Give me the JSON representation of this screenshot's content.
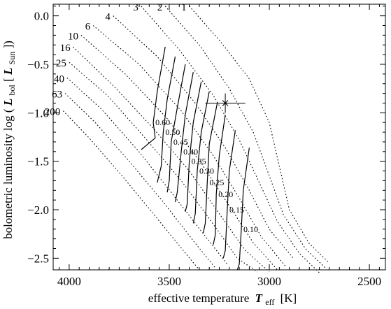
{
  "chart_data": {
    "type": "line",
    "xlabel": {
      "main": "effective temperature",
      "sym": "T",
      "sub": "eff",
      "unit": "[K]"
    },
    "ylabel": {
      "main": "bolometric luminosity log",
      "sym": "L",
      "sub1": "bol",
      "bracket_sym": "L",
      "sub2": "Sun"
    },
    "xlim": [
      4080,
      2420
    ],
    "ylim": [
      -2.62,
      0.12
    ],
    "x_ticks": [
      4000,
      3500,
      3000,
      2500
    ],
    "x_tick_labels": [
      "4000",
      "3500",
      "3000",
      "2500"
    ],
    "y_ticks": [
      0.0,
      -0.5,
      -1.0,
      -1.5,
      -2.0,
      -2.5
    ],
    "y_tick_labels": [
      "0.0",
      "−0.5",
      "−1.0",
      "−1.5",
      "−2.0",
      "−2.5"
    ],
    "isochrones": [
      {
        "age": "1",
        "points": [
          [
            3400,
            0.1
          ],
          [
            3250,
            -0.25
          ],
          [
            3100,
            -0.65
          ],
          [
            3000,
            -1.1
          ],
          [
            2950,
            -1.55
          ],
          [
            2900,
            -2.0
          ],
          [
            2800,
            -2.35
          ],
          [
            2700,
            -2.55
          ]
        ]
      },
      {
        "age": "2",
        "points": [
          [
            3520,
            0.1
          ],
          [
            3350,
            -0.3
          ],
          [
            3200,
            -0.75
          ],
          [
            3080,
            -1.2
          ],
          [
            3000,
            -1.65
          ],
          [
            2930,
            -2.05
          ],
          [
            2820,
            -2.4
          ],
          [
            2720,
            -2.6
          ]
        ]
      },
      {
        "age": "3",
        "points": [
          [
            3640,
            0.1
          ],
          [
            3450,
            -0.35
          ],
          [
            3280,
            -0.82
          ],
          [
            3150,
            -1.28
          ],
          [
            3050,
            -1.72
          ],
          [
            2960,
            -2.12
          ],
          [
            2850,
            -2.45
          ],
          [
            2750,
            -2.65
          ]
        ]
      },
      {
        "age": "4",
        "points": [
          [
            3780,
            0.0
          ],
          [
            3560,
            -0.42
          ],
          [
            3370,
            -0.9
          ],
          [
            3220,
            -1.36
          ],
          [
            3100,
            -1.8
          ],
          [
            3000,
            -2.2
          ],
          [
            2880,
            -2.5
          ]
        ]
      },
      {
        "age": "6",
        "points": [
          [
            3880,
            -0.1
          ],
          [
            3650,
            -0.5
          ],
          [
            3440,
            -0.98
          ],
          [
            3280,
            -1.44
          ],
          [
            3150,
            -1.88
          ],
          [
            3040,
            -2.28
          ],
          [
            2920,
            -2.58
          ]
        ]
      },
      {
        "age": "10",
        "points": [
          [
            3940,
            -0.2
          ],
          [
            3720,
            -0.6
          ],
          [
            3510,
            -1.06
          ],
          [
            3340,
            -1.52
          ],
          [
            3200,
            -1.96
          ],
          [
            3080,
            -2.34
          ],
          [
            2960,
            -2.62
          ]
        ]
      },
      {
        "age": "16",
        "points": [
          [
            3980,
            -0.32
          ],
          [
            3780,
            -0.72
          ],
          [
            3580,
            -1.16
          ],
          [
            3400,
            -1.6
          ],
          [
            3250,
            -2.04
          ],
          [
            3120,
            -2.42
          ],
          [
            3000,
            -2.64
          ]
        ]
      },
      {
        "age": "25",
        "points": [
          [
            4000,
            -0.48
          ],
          [
            3810,
            -0.82
          ],
          [
            3620,
            -1.26
          ],
          [
            3440,
            -1.7
          ],
          [
            3290,
            -2.12
          ],
          [
            3160,
            -2.5
          ],
          [
            3060,
            -2.64
          ]
        ]
      },
      {
        "age": "40",
        "points": [
          [
            4010,
            -0.64
          ],
          [
            3840,
            -0.96
          ],
          [
            3660,
            -1.38
          ],
          [
            3490,
            -1.82
          ],
          [
            3340,
            -2.22
          ],
          [
            3210,
            -2.56
          ]
        ]
      },
      {
        "age": "63",
        "points": [
          [
            4020,
            -0.8
          ],
          [
            3870,
            -1.1
          ],
          [
            3700,
            -1.5
          ],
          [
            3530,
            -1.92
          ],
          [
            3380,
            -2.32
          ],
          [
            3270,
            -2.6
          ]
        ]
      },
      {
        "age": "200",
        "points": [
          [
            4030,
            -0.98
          ],
          [
            3900,
            -1.26
          ],
          [
            3740,
            -1.64
          ],
          [
            3580,
            -2.04
          ],
          [
            3430,
            -2.42
          ],
          [
            3350,
            -2.62
          ]
        ]
      }
    ],
    "mass_tracks": [
      {
        "mass": "0.60",
        "points": [
          [
            3520,
            -0.32
          ],
          [
            3560,
            -0.78
          ],
          [
            3580,
            -1.1
          ],
          [
            3570,
            -1.26
          ],
          [
            3640,
            -1.38
          ]
        ]
      },
      {
        "mass": "0.50",
        "points": [
          [
            3470,
            -0.42
          ],
          [
            3510,
            -0.86
          ],
          [
            3530,
            -1.2
          ],
          [
            3540,
            -1.55
          ],
          [
            3560,
            -1.72
          ]
        ]
      },
      {
        "mass": "0.45",
        "points": [
          [
            3420,
            -0.5
          ],
          [
            3460,
            -0.95
          ],
          [
            3490,
            -1.3
          ],
          [
            3500,
            -1.7
          ],
          [
            3510,
            -1.82
          ]
        ]
      },
      {
        "mass": "0.40",
        "points": [
          [
            3380,
            -0.58
          ],
          [
            3420,
            -1.02
          ],
          [
            3440,
            -1.4
          ],
          [
            3460,
            -1.82
          ],
          [
            3470,
            -1.92
          ]
        ]
      },
      {
        "mass": "0.35",
        "points": [
          [
            3340,
            -0.68
          ],
          [
            3380,
            -1.1
          ],
          [
            3400,
            -1.5
          ],
          [
            3410,
            -1.94
          ],
          [
            3420,
            -2.02
          ]
        ]
      },
      {
        "mass": "0.30",
        "points": [
          [
            3300,
            -0.78
          ],
          [
            3340,
            -1.2
          ],
          [
            3360,
            -1.6
          ],
          [
            3370,
            -2.04
          ],
          [
            3380,
            -2.14
          ]
        ]
      },
      {
        "mass": "0.25",
        "points": [
          [
            3260,
            -0.9
          ],
          [
            3300,
            -1.32
          ],
          [
            3310,
            -1.72
          ],
          [
            3320,
            -2.14
          ],
          [
            3330,
            -2.24
          ]
        ]
      },
      {
        "mass": "0.20",
        "points": [
          [
            3220,
            -1.02
          ],
          [
            3250,
            -1.44
          ],
          [
            3265,
            -1.84
          ],
          [
            3270,
            -2.26
          ],
          [
            3280,
            -2.36
          ]
        ]
      },
      {
        "mass": "0.15",
        "points": [
          [
            3170,
            -1.18
          ],
          [
            3200,
            -1.6
          ],
          [
            3210,
            -2.0
          ],
          [
            3220,
            -2.42
          ],
          [
            3230,
            -2.5
          ]
        ]
      },
      {
        "mass": "0.10",
        "points": [
          [
            3100,
            -1.36
          ],
          [
            3130,
            -1.8
          ],
          [
            3140,
            -2.2
          ],
          [
            3150,
            -2.56
          ],
          [
            3160,
            -2.62
          ]
        ]
      }
    ],
    "star": {
      "teff": 3220,
      "log_l": -0.9,
      "teff_err": 100,
      "log_l_err": 0.1
    }
  }
}
